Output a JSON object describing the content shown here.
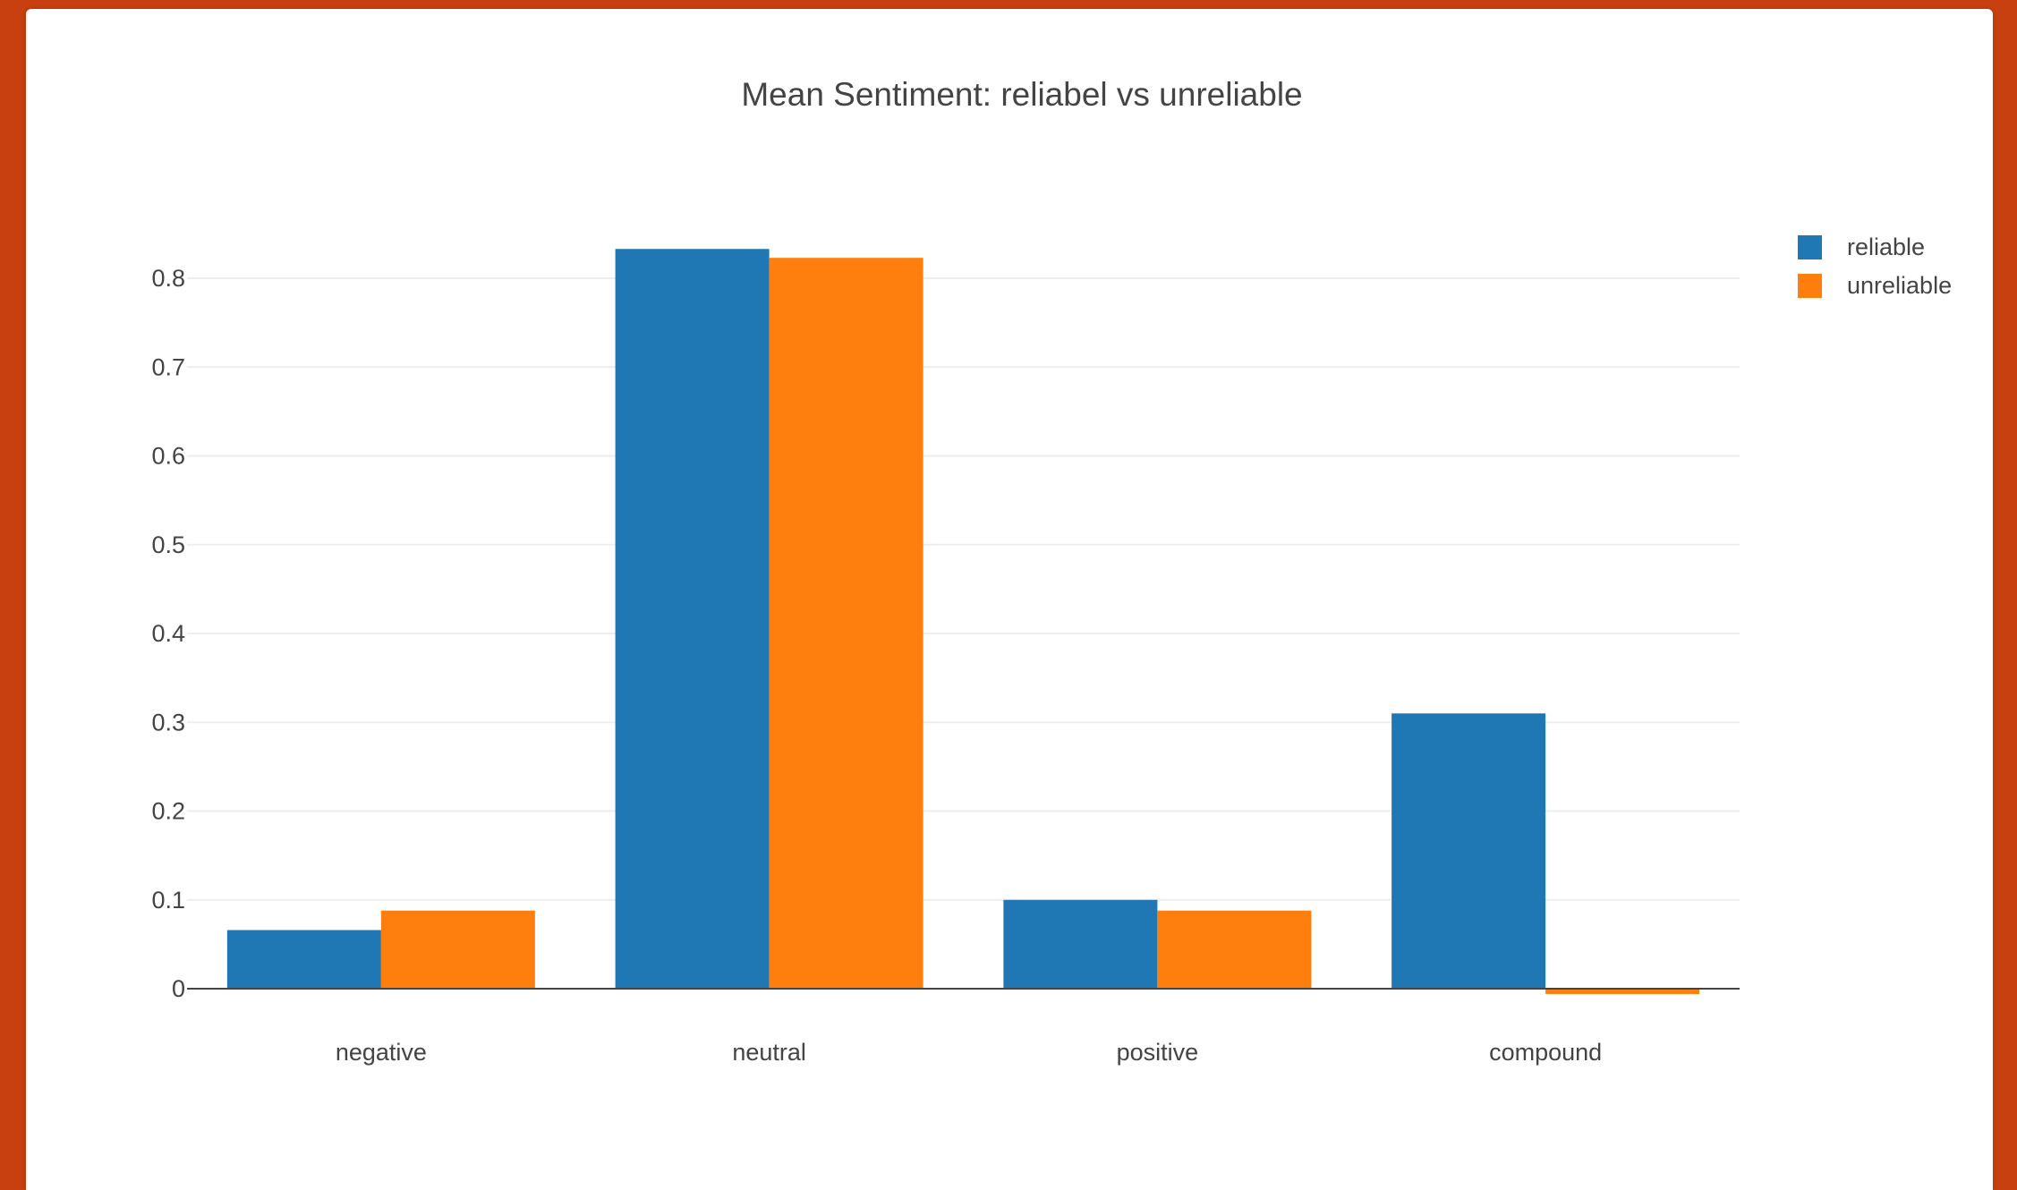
{
  "chart_data": {
    "type": "bar",
    "title": "Mean Sentiment: reliabel vs unreliable",
    "xlabel": "",
    "ylabel": "",
    "categories": [
      "negative",
      "neutral",
      "positive",
      "compound"
    ],
    "series": [
      {
        "name": "reliable",
        "color": "#1f77b4",
        "values": [
          0.066,
          0.833,
          0.1,
          0.31
        ]
      },
      {
        "name": "unreliable",
        "color": "#ff7f0e",
        "values": [
          0.088,
          0.823,
          0.088,
          -0.006
        ]
      }
    ],
    "ylim": [
      -0.01,
      0.85
    ],
    "yticks": [
      0,
      0.1,
      0.2,
      0.3,
      0.4,
      0.5,
      0.6,
      0.7,
      0.8
    ],
    "ytick_labels": [
      "0",
      "0.1",
      "0.2",
      "0.3",
      "0.4",
      "0.5",
      "0.6",
      "0.7",
      "0.8"
    ],
    "grid": true,
    "legend_position": "top-right"
  }
}
